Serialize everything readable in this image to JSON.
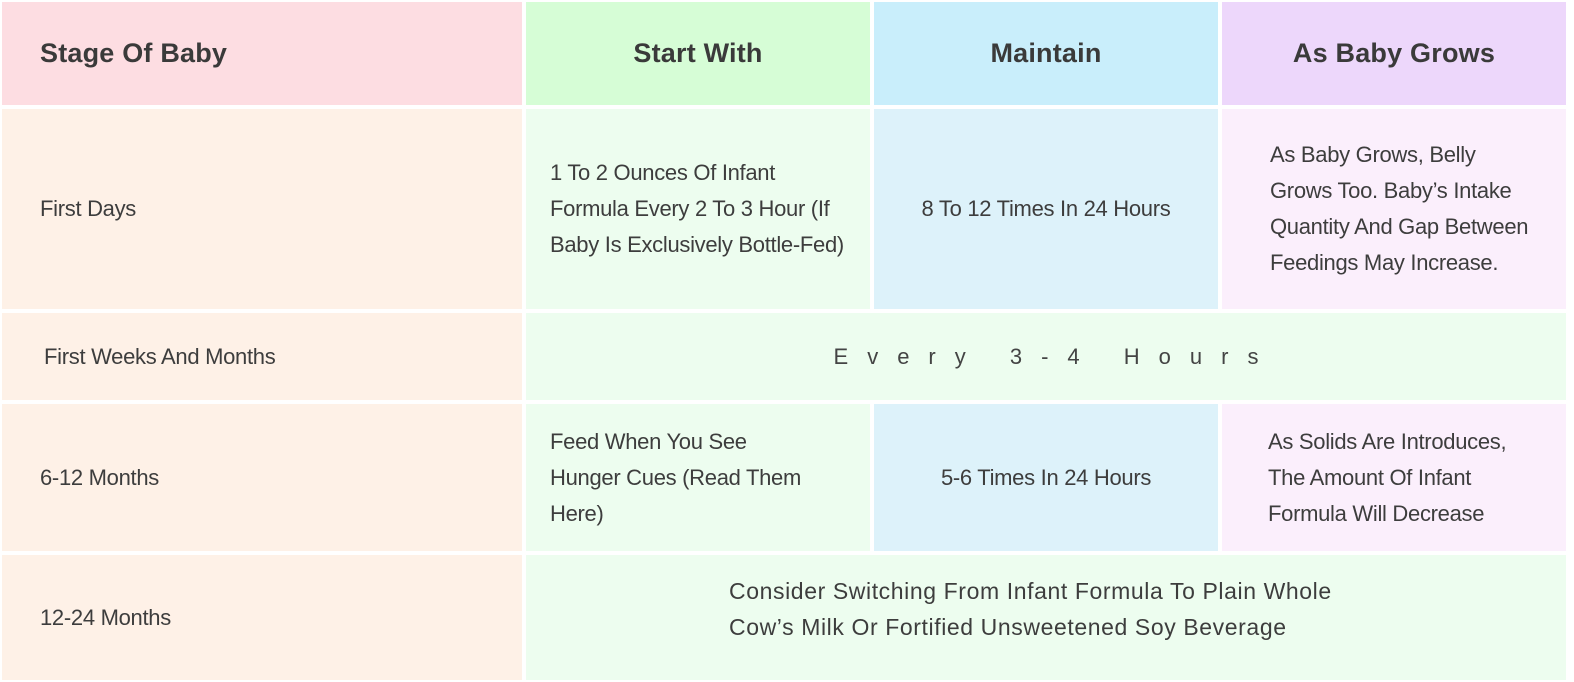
{
  "header": {
    "stage": "Stage Of Baby",
    "start": "Start With",
    "maintain": "Maintain",
    "grows": "As Baby Grows"
  },
  "rows": [
    {
      "stage": "First Days",
      "start": "1 To 2 Ounces Of Infant Formula Every 2 To 3 Hour (If Baby Is Exclusively Bottle-Fed)",
      "maintain": "8 To 12 Times In 24 Hours",
      "grows": "As Baby Grows, Belly Grows Too. Baby’s Intake Quantity And Gap Between Feedings May Increase."
    },
    {
      "stage": "First Weeks And Months",
      "merged": "Every 3-4 Hours"
    },
    {
      "stage": "6-12 Months",
      "start": "Feed When You See Hunger Cues (Read Them Here)",
      "maintain": "5-6 Times In 24 Hours",
      "grows": "As Solids Are Introduces, The Amount Of Infant Formula Will Decrease"
    },
    {
      "stage": "12-24 Months",
      "merged": "Consider Switching From Infant Formula To Plain Whole Cow’s Milk Or Fortified Unsweetened Soy Beverage"
    }
  ],
  "colors": {
    "header_stage": "#fddde2",
    "header_start": "#d6fdd6",
    "header_maintain": "#c9eefb",
    "header_grows": "#edd7fb",
    "stage_column": "#fef1e7",
    "start_column": "#edfdef",
    "maintain_column": "#ddf2fa",
    "grows_column": "#fbeffc"
  }
}
